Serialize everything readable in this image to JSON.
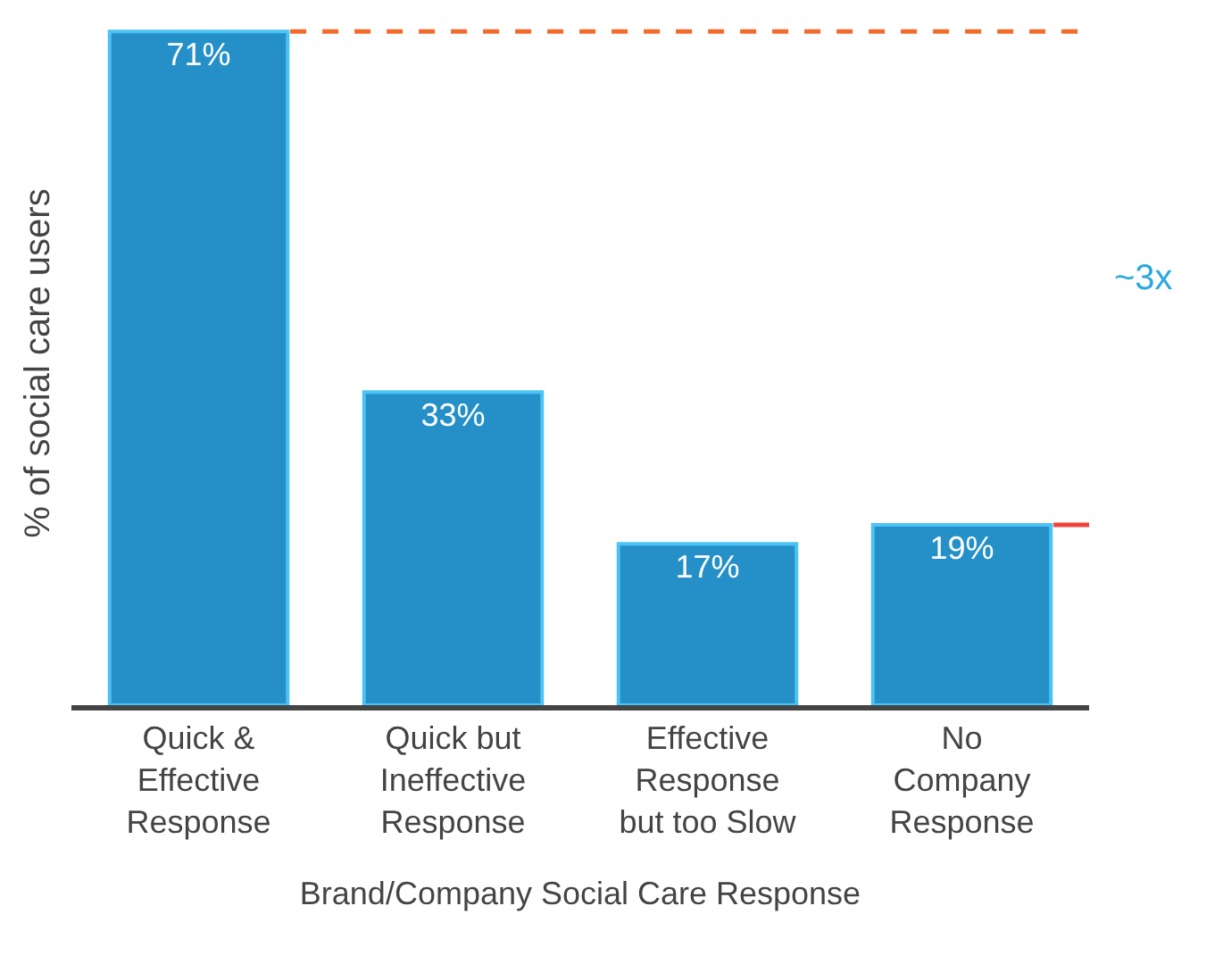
{
  "chart_data": {
    "type": "bar",
    "categories": [
      "Quick &\nEffective\nResponse",
      "Quick but\nIneffective\nResponse",
      "Effective\nResponse\nbut too Slow",
      "No\nCompany\nResponse"
    ],
    "values": [
      71,
      33,
      17,
      19
    ],
    "value_labels": [
      "71%",
      "33%",
      "17%",
      "19%"
    ],
    "color": "#2590c8",
    "ylabel": "% of social care users",
    "xlabel": "Brand/Company Social Care Response",
    "annotations": [
      "~3x"
    ],
    "legend": false
  }
}
